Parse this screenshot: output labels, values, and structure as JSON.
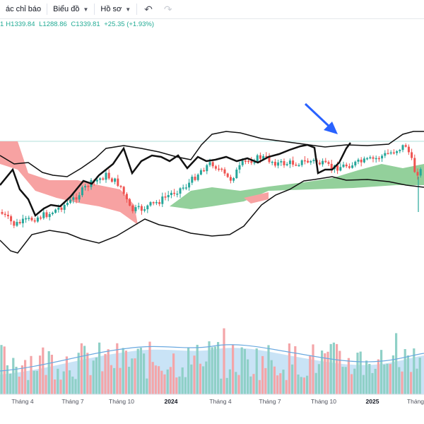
{
  "toolbar": {
    "indicators_label": "ác chỉ báo",
    "charts_label": "Biểu đồ",
    "profile_label": "Hồ sơ"
  },
  "ohlc": {
    "high_prefix": "1",
    "high": "H1339.84",
    "low": "L1288.86",
    "close": "C1339.81",
    "change": "+25.35 (+1.93%)"
  },
  "colors": {
    "up": "#26a69a",
    "down": "#ef5350",
    "cloud_bull": "#93d09b",
    "cloud_bear": "#f7a2a2",
    "vol_up": "#8fd0c7",
    "vol_down": "#f4a5a8",
    "annotation_arrow": "#2962ff"
  },
  "time_axis": {
    "labels": [
      {
        "text": "Tháng 4",
        "strong": false
      },
      {
        "text": "Tháng 7",
        "strong": false
      },
      {
        "text": "Tháng 10",
        "strong": false
      },
      {
        "text": "2024",
        "strong": true
      },
      {
        "text": "Tháng 4",
        "strong": false
      },
      {
        "text": "Tháng 7",
        "strong": false
      },
      {
        "text": "Tháng 10",
        "strong": false
      },
      {
        "text": "2025",
        "strong": true
      },
      {
        "text": "Tháng",
        "strong": false
      }
    ]
  },
  "icons": {
    "undo": "undo-icon",
    "redo": "redo-icon",
    "chevron": "chevron-down-icon",
    "arrow": "annotation-arrow-icon"
  }
}
